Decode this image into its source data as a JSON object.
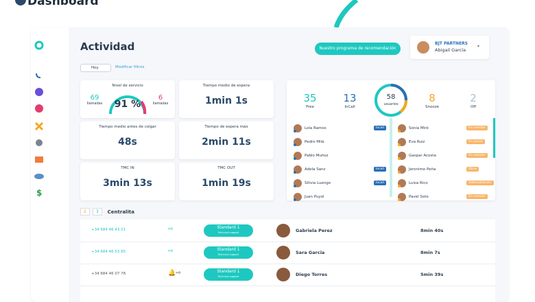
{
  "header": {
    "title": "Dashboard"
  },
  "page": {
    "title": "Actividad",
    "filter": "Hoy",
    "modify_filters": "Modificar filtros",
    "referral_button": "Nuestro programa de recomendación"
  },
  "user": {
    "company": "BJT PARTNERS",
    "name": "Abigail García"
  },
  "metrics": {
    "service_level": {
      "label": "Nivel de servicio",
      "left_value": "69",
      "left_label": "llamadas",
      "percent": "91 %",
      "right_value": "6",
      "right_label": "llamadas"
    },
    "cards": [
      {
        "label": "Tiempo medio de espera",
        "value": "1min 1s"
      },
      {
        "label": "Tiempo medio antes de colgar",
        "value": "48s"
      },
      {
        "label": "Tiempo de espera máx",
        "value": "2min 11s"
      },
      {
        "label": "TMC IN",
        "value": "3min 13s"
      },
      {
        "label": "TMC OUT",
        "value": "1min 19s"
      }
    ]
  },
  "status": {
    "items": [
      {
        "value": "35",
        "label": "Free"
      },
      {
        "value": "13",
        "label": "InCall"
      },
      {
        "value": "8",
        "label": "Snooze"
      },
      {
        "value": "2",
        "label": "Off"
      }
    ],
    "total": {
      "value": "58",
      "label": "usuarios"
    }
  },
  "agents_left": [
    {
      "name": "Lola Ramos",
      "tag": "Incall"
    },
    {
      "name": "Pedro Milá"
    },
    {
      "name": "Pablo Muñoz"
    },
    {
      "name": "Adela Sanz",
      "tag": "Incall"
    },
    {
      "name": "Silivia Luengo",
      "tag": "Incall"
    },
    {
      "name": "Juan Puyol"
    }
  ],
  "agents_right": [
    {
      "name": "Sonia Miró",
      "tag": "En revisión"
    },
    {
      "name": "Eva Ruiz",
      "tag": "En pausa"
    },
    {
      "name": "Gaspar Acosta",
      "tag": "En revisión"
    },
    {
      "name": "Jeronimo Peña",
      "tag": "Otros"
    },
    {
      "name": "Luisa Rico",
      "tag": "Administración"
    },
    {
      "name": "Pavel Soto",
      "tag": "En revisión"
    }
  ],
  "calls": {
    "tabs": [
      "2",
      "3"
    ],
    "title": "Centralita",
    "rows": [
      {
        "phone": "+34 684 46 43 01",
        "queue": "Standard 1",
        "queue_sub": "Technical support",
        "agent": "Gabriela Perez",
        "duration": "8min 40s"
      },
      {
        "phone": "+34 684 46 53 85",
        "queue": "Standard 1",
        "queue_sub": "Technical support",
        "agent": "Sara Garcia",
        "duration": "8min 7s"
      },
      {
        "phone": "+34 684 46 07 78",
        "queue": "Standard 1",
        "queue_sub": "Technical support",
        "agent": "Diego Torres",
        "duration": "5min 39s"
      }
    ]
  }
}
